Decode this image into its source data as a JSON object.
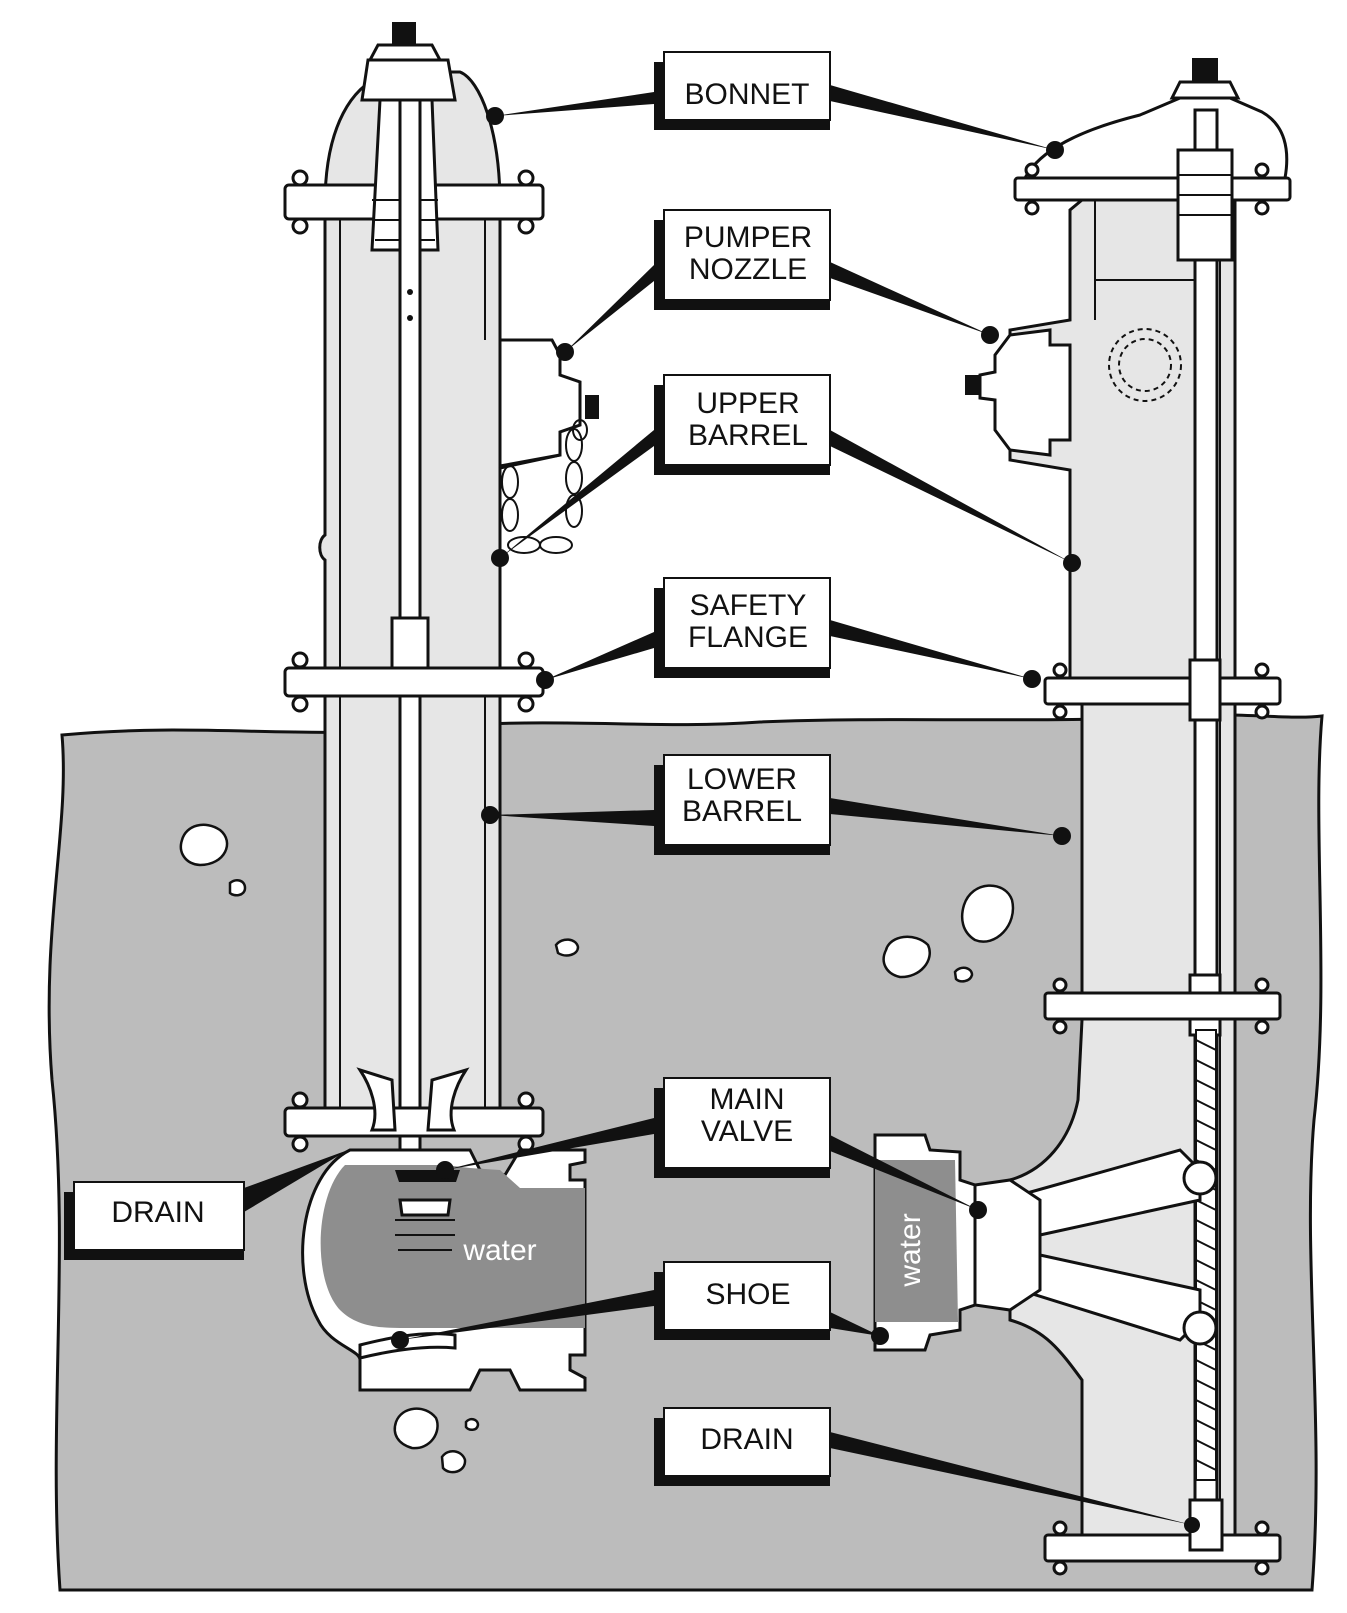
{
  "labels": {
    "bonnet": "BONNET",
    "pumper_nozzle_1": "PUMPER",
    "pumper_nozzle_2": "NOZZLE",
    "upper_barrel_1": "UPPER",
    "upper_barrel_2": "BARREL",
    "safety_flange_1": "SAFETY",
    "safety_flange_2": "FLANGE",
    "lower_barrel_1": "LOWER",
    "lower_barrel_2": "BARREL",
    "main_valve_1": "MAIN",
    "main_valve_2": "VALVE",
    "shoe": "SHOE",
    "drain_left": "DRAIN",
    "drain_right": "DRAIN"
  },
  "water_labels": {
    "left": "water",
    "right": "water"
  },
  "colors": {
    "ground": "#bcbcbc",
    "barrel_interior": "#e6e6e6",
    "water": "#8e8e8e",
    "outline": "#111111",
    "label_shadow": "#111111"
  }
}
